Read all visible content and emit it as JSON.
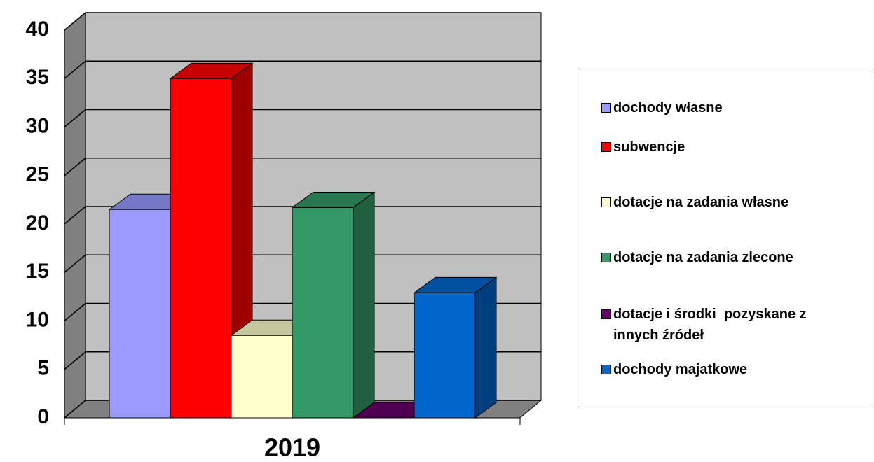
{
  "chart_data": {
    "type": "bar3d",
    "categories": [
      "2019"
    ],
    "series": [
      {
        "name": "dochody własne",
        "color": "#9999ff",
        "values": [
          21.5
        ]
      },
      {
        "name": "subwencje",
        "color": "#ff0000",
        "values": [
          35
        ]
      },
      {
        "name": "dotacje na zadania własne",
        "color": "#ffffcc",
        "values": [
          8.5
        ]
      },
      {
        "name": "dotacje na zadania zlecone",
        "color": "#339966",
        "values": [
          21.7
        ]
      },
      {
        "name": "dotacje i środki  pozyskane z innych źródeł",
        "color": "#660066",
        "values": [
          0
        ]
      },
      {
        "name": "dochody majatkowe",
        "color": "#0066cc",
        "values": [
          12.9
        ]
      }
    ],
    "ylim": [
      0,
      40
    ],
    "yticks": [
      0,
      5,
      10,
      15,
      20,
      25,
      30,
      35,
      40
    ],
    "grid": true,
    "legend": "right"
  }
}
